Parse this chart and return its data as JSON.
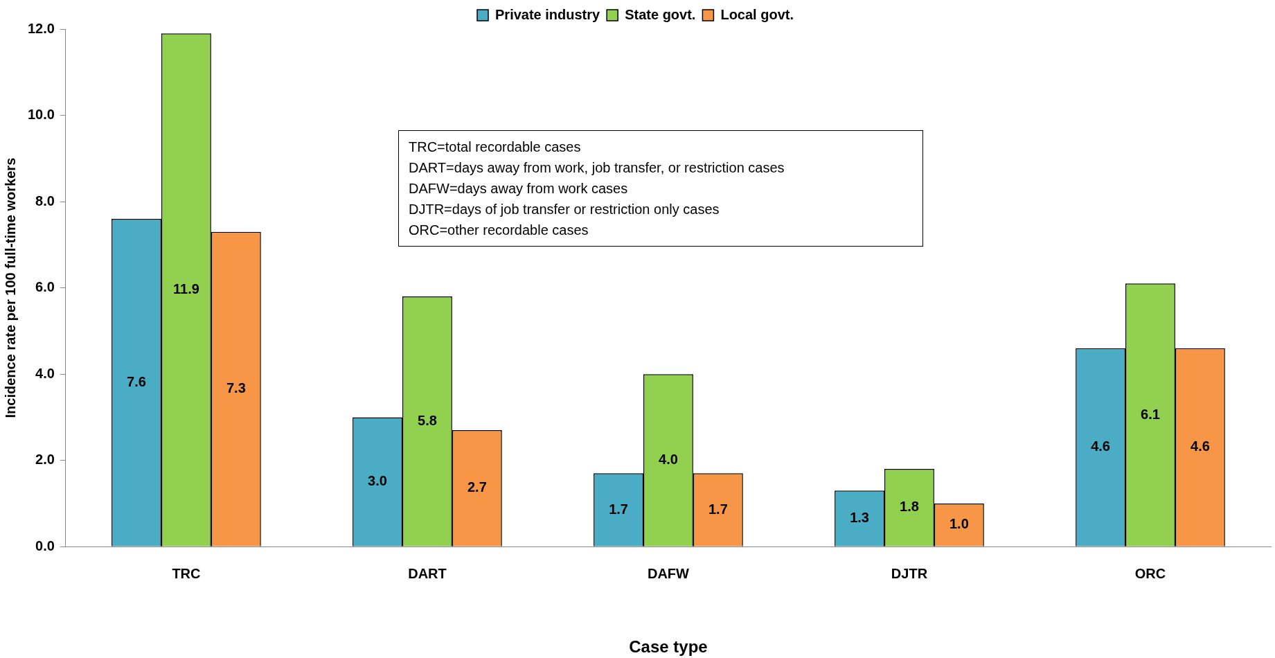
{
  "chart_data": {
    "type": "bar",
    "xlabel": "Case type",
    "ylabel": "Incidence rate per 100 full-time workers",
    "categories": [
      "TRC",
      "DART",
      "DAFW",
      "DJTR",
      "ORC"
    ],
    "series": [
      {
        "name": "Private industry",
        "color": "#4bacc6",
        "values": [
          7.6,
          3.0,
          1.7,
          1.3,
          4.6
        ],
        "value_labels": [
          "7.6",
          "3.0",
          "1.7",
          "1.3",
          "4.6"
        ]
      },
      {
        "name": "State govt.",
        "color": "#92d050",
        "values": [
          11.9,
          5.8,
          4.0,
          1.8,
          6.1
        ],
        "value_labels": [
          "11.9",
          "5.8",
          "4.0",
          "1.8",
          "6.1"
        ]
      },
      {
        "name": "Local govt.",
        "color": "#f79646",
        "values": [
          7.3,
          2.7,
          1.7,
          1.0,
          4.6
        ],
        "value_labels": [
          "7.3",
          "2.7",
          "1.7",
          "1.0",
          "4.6"
        ]
      }
    ],
    "ylim": [
      0,
      12
    ],
    "yticks": [
      {
        "value": 0,
        "label": "0.0"
      },
      {
        "value": 2,
        "label": "2.0"
      },
      {
        "value": 4,
        "label": "4.0"
      },
      {
        "value": 6,
        "label": "6.0"
      },
      {
        "value": 8,
        "label": "8.0"
      },
      {
        "value": 10,
        "label": "10.0"
      },
      {
        "value": 12,
        "label": "12.0"
      }
    ],
    "grid": false,
    "legend": "top",
    "annotations": [
      "TRC=total recordable cases",
      "DART=days away from work, job transfer, or restriction cases",
      "DAFW=days away from work cases",
      "DJTR=days of job transfer or restriction only cases",
      "ORC=other recordable cases"
    ]
  }
}
